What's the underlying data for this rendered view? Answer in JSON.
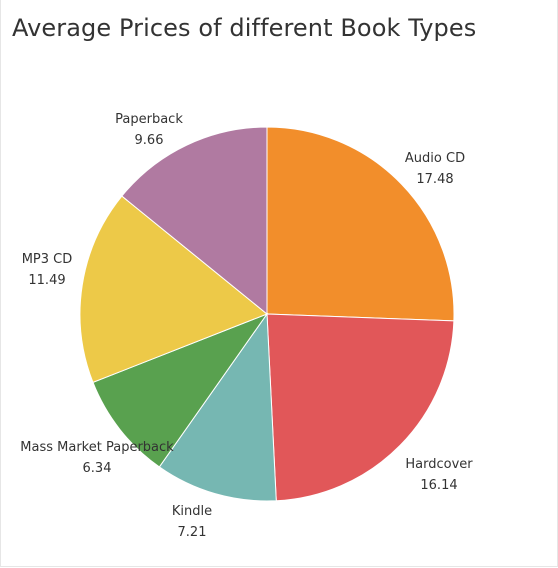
{
  "chart_data": {
    "type": "pie",
    "title": "Average Prices of different Book Types",
    "slices": [
      {
        "label": "Audio CD",
        "value": 17.48,
        "value_text": "17.48",
        "color": "#F28E2B"
      },
      {
        "label": "Hardcover",
        "value": 16.14,
        "value_text": "16.14",
        "color": "#E15759"
      },
      {
        "label": "Kindle",
        "value": 7.21,
        "value_text": "7.21",
        "color": "#76B7B2"
      },
      {
        "label": "Mass Market Paperback",
        "value": 6.34,
        "value_text": "6.34",
        "color": "#59A14F"
      },
      {
        "label": "MP3 CD",
        "value": 11.49,
        "value_text": "11.49",
        "color": "#EDC948"
      },
      {
        "label": "Paperback",
        "value": 9.66,
        "value_text": "9.66",
        "color": "#B07AA1"
      }
    ],
    "start_angle": "12 o'clock",
    "direction": "clockwise",
    "legend": "none"
  }
}
